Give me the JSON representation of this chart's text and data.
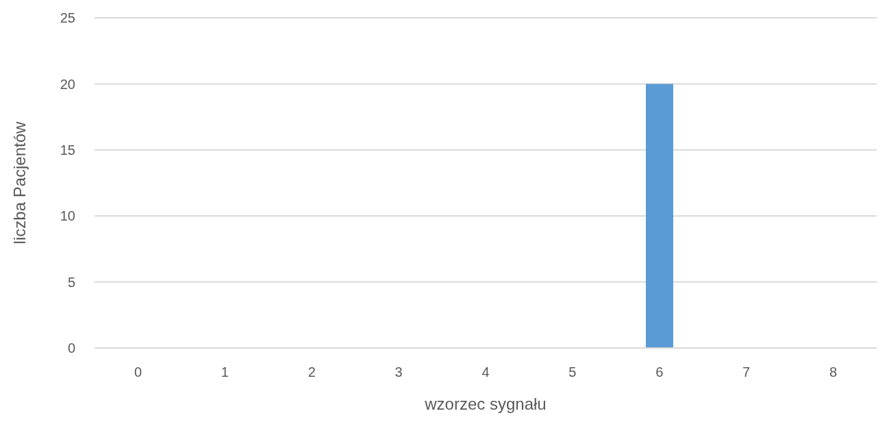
{
  "chart_data": {
    "type": "bar",
    "xlabel": "wzorzec sygnału",
    "ylabel": "liczba Pacjentów",
    "categories": [
      "0",
      "1",
      "2",
      "3",
      "4",
      "5",
      "6",
      "7",
      "8"
    ],
    "values": [
      0,
      0,
      0,
      0,
      0,
      0,
      20,
      0,
      0
    ],
    "color": "#5b9bd5",
    "ylim": [
      0,
      25
    ],
    "yticks": [
      0,
      5,
      10,
      15,
      20,
      25
    ],
    "grid": "y",
    "legend": false
  }
}
